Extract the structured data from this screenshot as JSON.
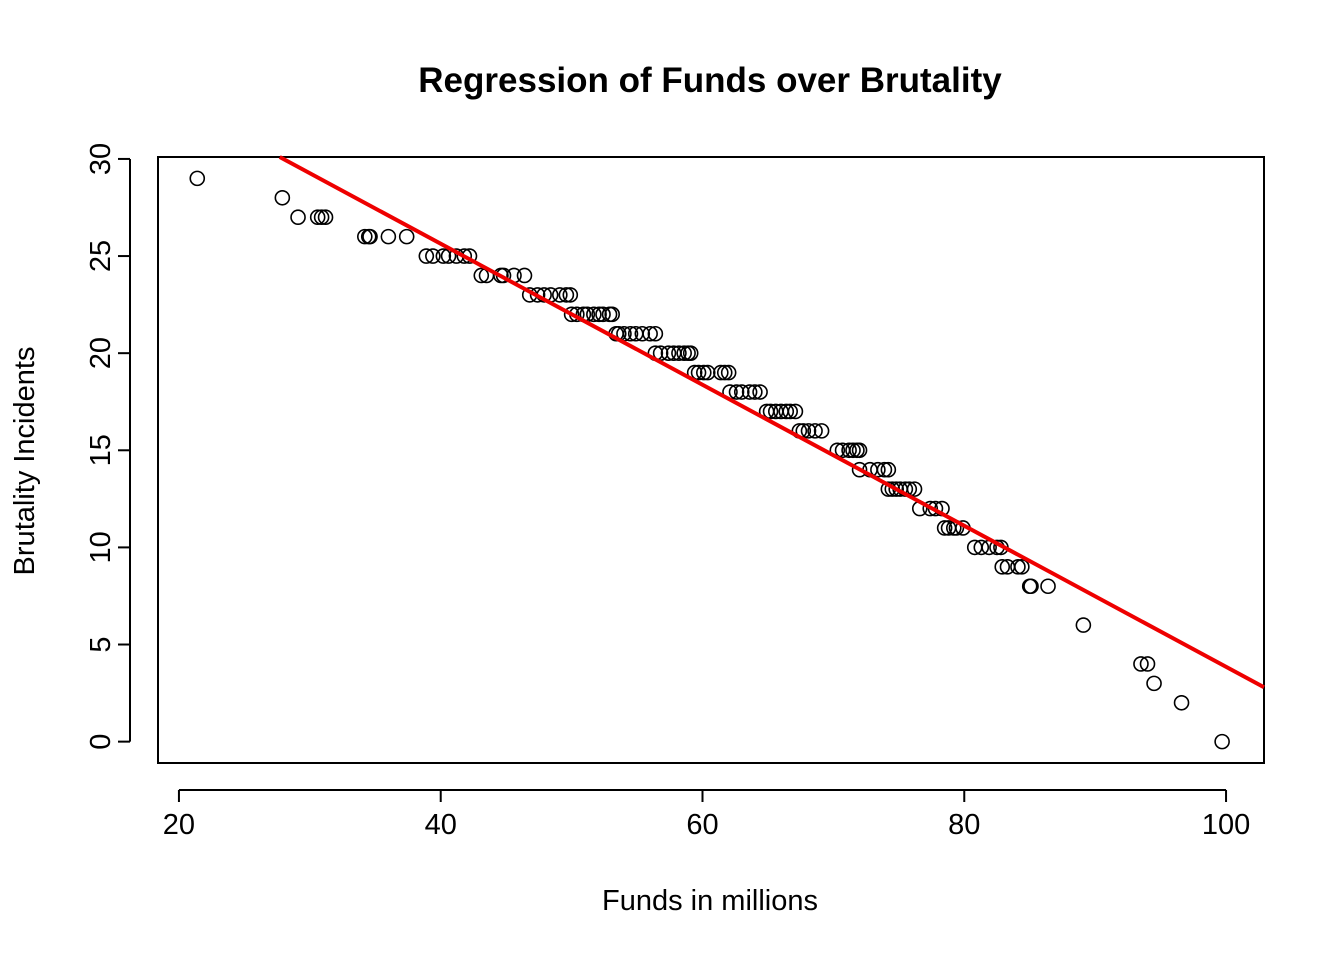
{
  "chart_data": {
    "type": "scatter",
    "title": "Regression of Funds over Brutality",
    "xlabel": "Funds in millions",
    "ylabel": "Brutality Incidents",
    "xlim": [
      18.4,
      102.9
    ],
    "ylim": [
      -1.1,
      30.1
    ],
    "xticks": [
      20,
      40,
      60,
      80,
      100
    ],
    "yticks": [
      0,
      5,
      10,
      15,
      20,
      25,
      30
    ],
    "grid": false,
    "point_color": "#000000",
    "line_color": "#ee0000",
    "regression_line": {
      "x": [
        27.7,
        102.9
      ],
      "y": [
        30.1,
        2.8
      ]
    },
    "points": [
      [
        21.4,
        29
      ],
      [
        27.9,
        28
      ],
      [
        29.1,
        27
      ],
      [
        30.6,
        27
      ],
      [
        30.9,
        27
      ],
      [
        31.2,
        27
      ],
      [
        34.2,
        26
      ],
      [
        34.5,
        26
      ],
      [
        34.6,
        26
      ],
      [
        36.0,
        26
      ],
      [
        37.4,
        26
      ],
      [
        38.9,
        25
      ],
      [
        39.4,
        25
      ],
      [
        40.2,
        25
      ],
      [
        40.6,
        25
      ],
      [
        41.2,
        25
      ],
      [
        41.8,
        25
      ],
      [
        42.2,
        25
      ],
      [
        43.1,
        24
      ],
      [
        43.5,
        24
      ],
      [
        44.6,
        24
      ],
      [
        44.8,
        24
      ],
      [
        45.6,
        24
      ],
      [
        46.4,
        24
      ],
      [
        46.8,
        23
      ],
      [
        47.4,
        23
      ],
      [
        47.9,
        23
      ],
      [
        48.4,
        23
      ],
      [
        49.1,
        23
      ],
      [
        49.6,
        23
      ],
      [
        49.9,
        23
      ],
      [
        50.0,
        22
      ],
      [
        50.4,
        22
      ],
      [
        50.9,
        22
      ],
      [
        51.2,
        22
      ],
      [
        51.7,
        22
      ],
      [
        52.1,
        22
      ],
      [
        52.4,
        22
      ],
      [
        52.9,
        22
      ],
      [
        53.1,
        22
      ],
      [
        53.4,
        21
      ],
      [
        53.6,
        21
      ],
      [
        54.0,
        21
      ],
      [
        54.5,
        21
      ],
      [
        54.9,
        21
      ],
      [
        55.4,
        21
      ],
      [
        56.0,
        21
      ],
      [
        56.4,
        21
      ],
      [
        56.4,
        20
      ],
      [
        56.8,
        20
      ],
      [
        57.4,
        20
      ],
      [
        57.8,
        20
      ],
      [
        58.2,
        20
      ],
      [
        58.6,
        20
      ],
      [
        58.9,
        20
      ],
      [
        59.1,
        20
      ],
      [
        59.4,
        19
      ],
      [
        59.7,
        19
      ],
      [
        60.1,
        19
      ],
      [
        60.4,
        19
      ],
      [
        61.4,
        19
      ],
      [
        61.7,
        19
      ],
      [
        62.0,
        19
      ],
      [
        62.1,
        18
      ],
      [
        62.6,
        18
      ],
      [
        63.0,
        18
      ],
      [
        63.6,
        18
      ],
      [
        64.0,
        18
      ],
      [
        64.4,
        18
      ],
      [
        64.9,
        17
      ],
      [
        65.2,
        17
      ],
      [
        65.6,
        17
      ],
      [
        66.0,
        17
      ],
      [
        66.4,
        17
      ],
      [
        66.7,
        17
      ],
      [
        67.1,
        17
      ],
      [
        67.4,
        16
      ],
      [
        67.7,
        16
      ],
      [
        68.1,
        16
      ],
      [
        68.6,
        16
      ],
      [
        69.1,
        16
      ],
      [
        70.3,
        15
      ],
      [
        70.7,
        15
      ],
      [
        71.2,
        15
      ],
      [
        71.5,
        15
      ],
      [
        71.8,
        15
      ],
      [
        72.0,
        15
      ],
      [
        72.0,
        14
      ],
      [
        72.8,
        14
      ],
      [
        73.4,
        14
      ],
      [
        73.9,
        14
      ],
      [
        74.2,
        14
      ],
      [
        74.2,
        13
      ],
      [
        74.5,
        13
      ],
      [
        74.8,
        13
      ],
      [
        75.1,
        13
      ],
      [
        75.5,
        13
      ],
      [
        75.8,
        13
      ],
      [
        76.2,
        13
      ],
      [
        76.6,
        12
      ],
      [
        77.4,
        12
      ],
      [
        77.8,
        12
      ],
      [
        78.3,
        12
      ],
      [
        78.5,
        11
      ],
      [
        78.8,
        11
      ],
      [
        79.2,
        11
      ],
      [
        79.4,
        11
      ],
      [
        79.9,
        11
      ],
      [
        80.8,
        10
      ],
      [
        81.3,
        10
      ],
      [
        81.9,
        10
      ],
      [
        82.5,
        10
      ],
      [
        82.8,
        10
      ],
      [
        82.9,
        9
      ],
      [
        83.3,
        9
      ],
      [
        84.1,
        9
      ],
      [
        84.4,
        9
      ],
      [
        85.0,
        8
      ],
      [
        85.1,
        8
      ],
      [
        86.4,
        8
      ],
      [
        89.1,
        6
      ],
      [
        93.5,
        4
      ],
      [
        94.0,
        4
      ],
      [
        94.5,
        3
      ],
      [
        96.6,
        2
      ],
      [
        99.7,
        0
      ]
    ]
  }
}
